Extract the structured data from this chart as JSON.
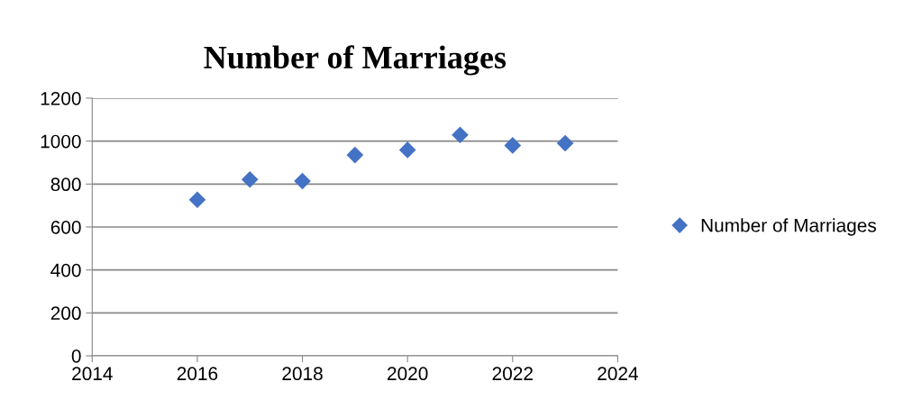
{
  "chart_data": {
    "type": "scatter",
    "title": "Number of Marriages",
    "x": [
      2016,
      2017,
      2018,
      2019,
      2020,
      2021,
      2022,
      2023
    ],
    "series": [
      {
        "name": "Number of Marriages",
        "color": "#4472c4",
        "values": [
          727,
          821,
          814,
          935,
          959,
          1029,
          980,
          990
        ]
      }
    ],
    "xlim": [
      2014,
      2024
    ],
    "xticks": [
      2014,
      2016,
      2018,
      2020,
      2022,
      2024
    ],
    "ylim": [
      0,
      1200
    ],
    "yticks": [
      0,
      200,
      400,
      600,
      800,
      1000,
      1200
    ],
    "grid": "y",
    "legend": "right",
    "marker": "diamond"
  }
}
